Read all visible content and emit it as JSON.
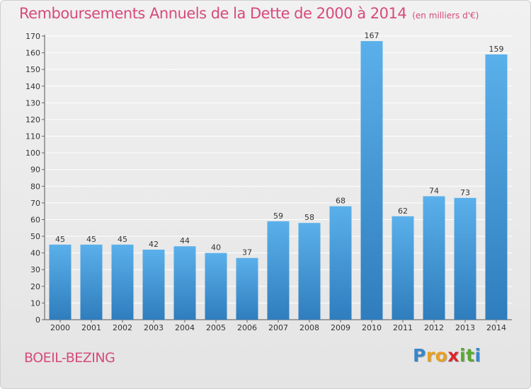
{
  "title": "Remboursements Annuels de la Dette de 2000 à 2014",
  "subtitle": "(en milliers d'€)",
  "commune": "BOEIL-BEZING",
  "logo": {
    "text": "Proxiti",
    "letters": [
      {
        "ch": "P",
        "color": "#3a86c8"
      },
      {
        "ch": "r",
        "color": "#e8a020"
      },
      {
        "ch": "o",
        "color": "#e8a020"
      },
      {
        "ch": "x",
        "color": "#d8262e"
      },
      {
        "ch": "i",
        "color": "#5aa832"
      },
      {
        "ch": "t",
        "color": "#5aa832"
      },
      {
        "ch": "i",
        "color": "#3a86c8"
      }
    ]
  },
  "colors": {
    "title": "#d64a7c",
    "bar_top": "#5ab0ea",
    "bar_bottom": "#2f7dbd",
    "grid": "#ffffff",
    "axis_text": "#333333"
  },
  "chart_data": {
    "type": "bar",
    "title": "Remboursements Annuels de la Dette de 2000 à 2014",
    "subtitle": "(en milliers d'€)",
    "xlabel": "",
    "ylabel": "",
    "categories": [
      "2000",
      "2001",
      "2002",
      "2003",
      "2004",
      "2005",
      "2006",
      "2007",
      "2008",
      "2009",
      "2010",
      "2011",
      "2012",
      "2013",
      "2014"
    ],
    "values": [
      45,
      45,
      45,
      42,
      44,
      40,
      37,
      59,
      58,
      68,
      167,
      62,
      74,
      73,
      159
    ],
    "ylim": [
      0,
      170
    ],
    "yticks": [
      0,
      10,
      20,
      30,
      40,
      50,
      60,
      70,
      80,
      90,
      100,
      110,
      120,
      130,
      140,
      150,
      160,
      170
    ],
    "grid": true,
    "data_labels": true
  }
}
